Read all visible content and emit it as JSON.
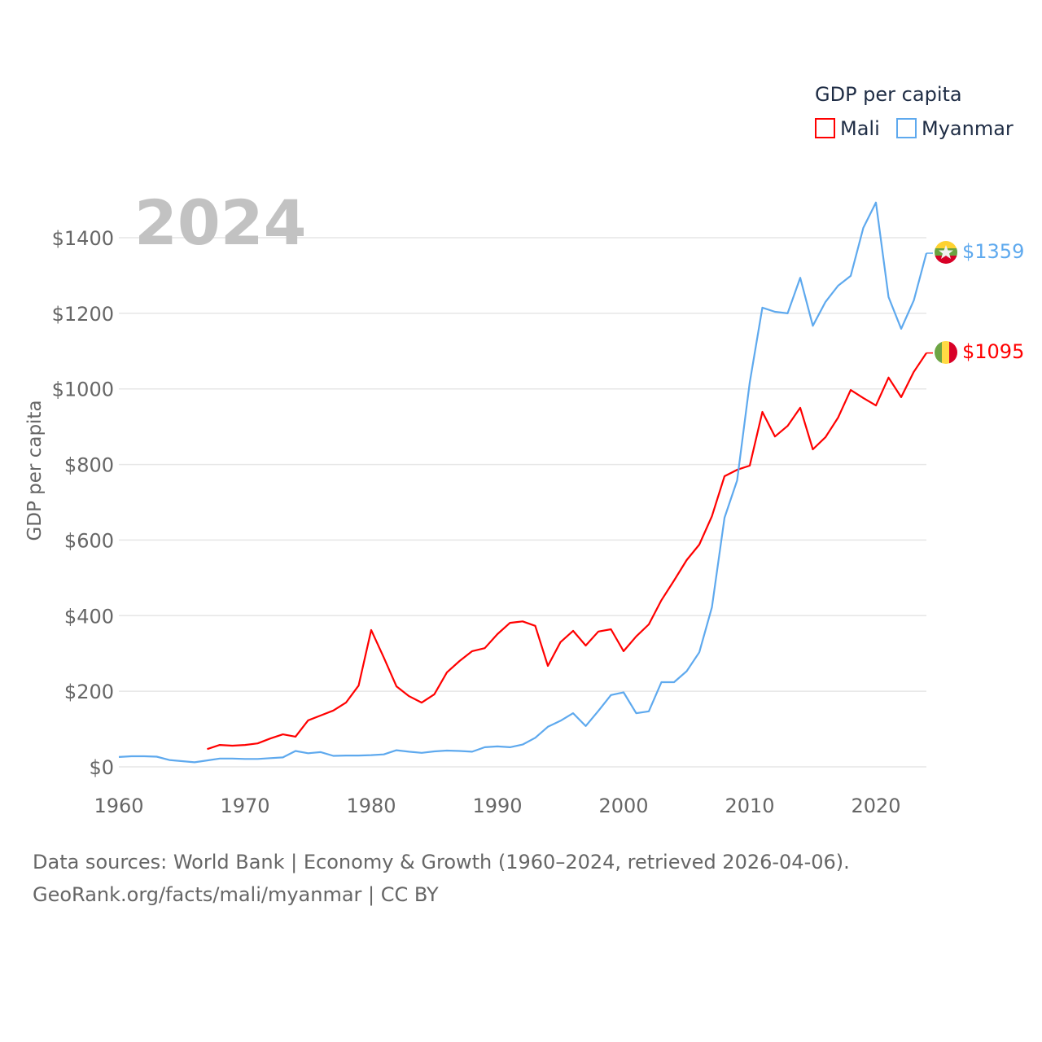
{
  "chart_data": {
    "type": "line",
    "title": "GDP per capita",
    "year_label": "2024",
    "ylabel": "GDP per capita",
    "xlabel": "",
    "xlim": [
      1960,
      2024
    ],
    "ylim": [
      0,
      1400
    ],
    "x_ticks": [
      1960,
      1970,
      1980,
      1990,
      2000,
      2010,
      2020
    ],
    "y_ticks": [
      0,
      200,
      400,
      600,
      800,
      1000,
      1200,
      1400
    ],
    "y_tick_labels": [
      "$0",
      "$200",
      "$400",
      "$600",
      "$800",
      "$1000",
      "$1200",
      "$1400"
    ],
    "grid": true,
    "legend_position": "top-right",
    "series": [
      {
        "name": "Mali",
        "color": "#ff0000",
        "start_year": 1967,
        "end_label": "$1095",
        "values": [
          47,
          58,
          56,
          58,
          62,
          75,
          86,
          80,
          123,
          136,
          149,
          170,
          215,
          362,
          289,
          213,
          187,
          170,
          192,
          250,
          280,
          306,
          314,
          351,
          381,
          385,
          373,
          267,
          330,
          360,
          321,
          358,
          364,
          306,
          345,
          377,
          441,
          493,
          547,
          588,
          663,
          769,
          786,
          797,
          939,
          874,
          902,
          950,
          840,
          872,
          924,
          997,
          976,
          956,
          1030,
          978,
          1045,
          1095
        ]
      },
      {
        "name": "Myanmar",
        "color": "#5ea9ee",
        "start_year": 1960,
        "end_label": "$1359",
        "values": [
          26,
          28,
          28,
          27,
          18,
          15,
          12,
          17,
          22,
          22,
          21,
          21,
          23,
          25,
          42,
          36,
          39,
          29,
          30,
          30,
          31,
          33,
          44,
          40,
          37,
          41,
          43,
          42,
          40,
          52,
          54,
          52,
          59,
          77,
          106,
          122,
          142,
          108,
          148,
          190,
          197,
          142,
          147,
          224,
          224,
          253,
          303,
          422,
          659,
          758,
          1017,
          1215,
          1204,
          1200,
          1294,
          1167,
          1230,
          1273,
          1299,
          1426,
          1493,
          1243,
          1159,
          1234,
          1359
        ]
      }
    ]
  },
  "footer": {
    "line1": "Data sources: World Bank | Economy & Growth (1960–2024, retrieved 2026-04-06).",
    "line2": "GeoRank.org/facts/mali/myanmar | CC BY"
  }
}
